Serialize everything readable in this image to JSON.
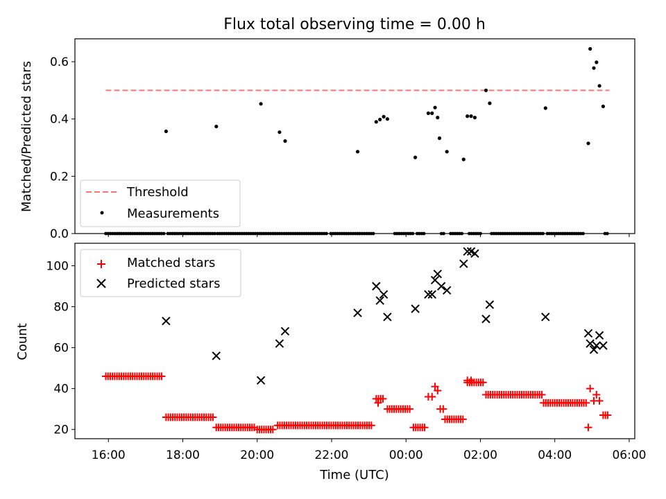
{
  "figure": {
    "title": "Flux total observing time = 0.00 h",
    "xlabel": "Time (UTC)"
  },
  "chart_data": [
    {
      "type": "scatter",
      "panel": "top",
      "ylabel": "Matched/Predicted stars",
      "ylim": [
        0,
        0.68
      ],
      "yticks": [
        0.0,
        0.2,
        0.4,
        0.6
      ],
      "ytick_labels": [
        "0.0",
        "0.2",
        "0.4",
        "0.6"
      ],
      "xlim_hours": [
        15.1,
        30.15
      ],
      "xtick_hours": [
        16,
        18,
        20,
        22,
        24,
        26,
        28,
        30
      ],
      "threshold": {
        "name": "Threshold",
        "y": 0.5,
        "x_start": 15.93,
        "x_end": 29.47,
        "color": "#ff7373"
      },
      "legend": {
        "position": "lower-left",
        "entries": [
          "Threshold",
          "Measurements"
        ]
      },
      "series": [
        {
          "name": "Measurements",
          "color": "#000000",
          "points": [
            [
              17.55,
              0.357
            ],
            [
              18.9,
              0.374
            ],
            [
              20.1,
              0.453
            ],
            [
              20.6,
              0.354
            ],
            [
              20.75,
              0.323
            ],
            [
              22.7,
              0.286
            ],
            [
              23.2,
              0.39
            ],
            [
              23.3,
              0.398
            ],
            [
              23.4,
              0.408
            ],
            [
              23.5,
              0.4
            ],
            [
              24.25,
              0.266
            ],
            [
              24.6,
              0.42
            ],
            [
              24.7,
              0.42
            ],
            [
              24.78,
              0.44
            ],
            [
              24.85,
              0.405
            ],
            [
              24.9,
              0.333
            ],
            [
              25.1,
              0.286
            ],
            [
              25.55,
              0.259
            ],
            [
              25.65,
              0.41
            ],
            [
              25.75,
              0.41
            ],
            [
              25.85,
              0.405
            ],
            [
              26.15,
              0.5
            ],
            [
              26.25,
              0.455
            ],
            [
              27.75,
              0.438
            ],
            [
              28.9,
              0.315
            ],
            [
              28.95,
              0.645
            ],
            [
              29.05,
              0.578
            ],
            [
              29.12,
              0.598
            ],
            [
              29.2,
              0.516
            ],
            [
              29.3,
              0.444
            ]
          ],
          "zero_run_hours": [
            [
              15.93,
              17.5
            ],
            [
              17.6,
              18.88
            ],
            [
              18.93,
              20.08
            ],
            [
              20.12,
              21.9
            ],
            [
              21.98,
              23.12
            ],
            [
              23.7,
              24.2
            ],
            [
              24.3,
              24.52
            ],
            [
              24.95,
              25.05
            ],
            [
              25.2,
              25.5
            ],
            [
              25.7,
              26.0
            ],
            [
              26.3,
              27.7
            ],
            [
              27.8,
              28.8
            ],
            [
              29.35,
              29.45
            ]
          ]
        }
      ]
    },
    {
      "type": "scatter",
      "panel": "bottom",
      "ylabel": "Count",
      "ylim": [
        15.5,
        111
      ],
      "yticks": [
        20,
        40,
        60,
        80,
        100
      ],
      "ytick_labels": [
        "20",
        "40",
        "60",
        "80",
        "100"
      ],
      "xlim_hours": [
        15.1,
        30.15
      ],
      "xtick_hours": [
        16,
        18,
        20,
        22,
        24,
        26,
        28,
        30
      ],
      "xtick_labels": [
        "16:00",
        "18:00",
        "20:00",
        "22:00",
        "00:00",
        "02:00",
        "04:00",
        "06:00"
      ],
      "legend": {
        "position": "top-left",
        "entries": [
          "Matched stars",
          "Predicted stars"
        ]
      },
      "series": [
        {
          "name": "Matched stars",
          "marker": "plus",
          "color": "#ff0000",
          "runs": [
            {
              "x_start": 15.93,
              "x_end": 17.45,
              "y": 46
            },
            {
              "x_start": 17.55,
              "x_end": 18.82,
              "y": 26
            },
            {
              "x_start": 18.9,
              "x_end": 19.95,
              "y": 21
            },
            {
              "x_start": 20.0,
              "x_end": 20.45,
              "y": 20
            },
            {
              "x_start": 20.55,
              "x_end": 23.1,
              "y": 22
            },
            {
              "x_start": 23.2,
              "x_end": 23.4,
              "y": 35
            },
            {
              "x_start": 23.5,
              "x_end": 24.15,
              "y": 30
            },
            {
              "x_start": 24.2,
              "x_end": 24.5,
              "y": 21
            },
            {
              "x_start": 25.05,
              "x_end": 25.55,
              "y": 25
            },
            {
              "x_start": 25.65,
              "x_end": 26.1,
              "y": 43
            },
            {
              "x_start": 26.15,
              "x_end": 27.65,
              "y": 37
            },
            {
              "x_start": 27.7,
              "x_end": 28.85,
              "y": 33
            },
            {
              "x_start": 29.3,
              "x_end": 29.45,
              "y": 27
            }
          ],
          "points": [
            [
              23.25,
              33
            ],
            [
              24.6,
              36
            ],
            [
              24.7,
              36
            ],
            [
              24.78,
              41
            ],
            [
              24.85,
              39
            ],
            [
              24.92,
              30
            ],
            [
              25.0,
              30
            ],
            [
              25.65,
              44
            ],
            [
              25.75,
              44
            ],
            [
              28.9,
              21
            ],
            [
              28.95,
              40
            ],
            [
              29.05,
              34
            ],
            [
              29.12,
              37
            ],
            [
              29.2,
              34
            ]
          ]
        },
        {
          "name": "Predicted stars",
          "marker": "x",
          "color": "#000000",
          "points": [
            [
              17.55,
              73
            ],
            [
              18.9,
              56
            ],
            [
              20.1,
              44
            ],
            [
              20.6,
              62
            ],
            [
              20.75,
              68
            ],
            [
              22.7,
              77
            ],
            [
              23.2,
              90
            ],
            [
              23.3,
              83
            ],
            [
              23.4,
              86
            ],
            [
              23.5,
              75
            ],
            [
              24.25,
              79
            ],
            [
              24.6,
              86
            ],
            [
              24.7,
              86
            ],
            [
              24.78,
              93
            ],
            [
              24.85,
              96
            ],
            [
              24.95,
              90
            ],
            [
              25.1,
              88
            ],
            [
              25.55,
              101
            ],
            [
              25.65,
              107
            ],
            [
              25.75,
              107
            ],
            [
              25.85,
              106
            ],
            [
              26.15,
              74
            ],
            [
              26.25,
              81
            ],
            [
              27.75,
              75
            ],
            [
              28.9,
              67
            ],
            [
              28.95,
              62
            ],
            [
              29.05,
              59
            ],
            [
              29.12,
              61
            ],
            [
              29.2,
              66
            ],
            [
              29.3,
              61
            ]
          ]
        }
      ]
    }
  ]
}
